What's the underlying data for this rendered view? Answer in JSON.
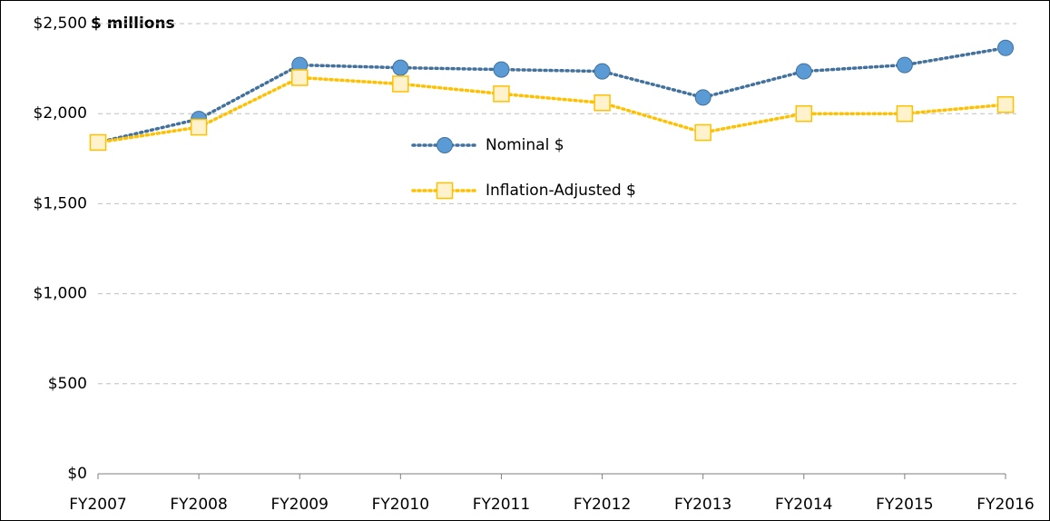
{
  "chart_data": {
    "type": "line",
    "unit_label": "$ millions",
    "categories": [
      "FY2007",
      "FY2008",
      "FY2009",
      "FY2010",
      "FY2011",
      "FY2012",
      "FY2013",
      "FY2014",
      "FY2015",
      "FY2016"
    ],
    "series": [
      {
        "name": "Nominal $",
        "color": "#41719c",
        "marker_color": "#5b9bd5",
        "marker": "circle",
        "values": [
          1840,
          1970,
          2270,
          2255,
          2245,
          2235,
          2090,
          2235,
          2270,
          2365
        ]
      },
      {
        "name": "Inflation-Adjusted $",
        "color": "#ffc000",
        "marker_color": "#fff2cc",
        "marker": "square",
        "values": [
          1840,
          1925,
          2200,
          2165,
          2110,
          2060,
          1895,
          2000,
          2000,
          2050
        ]
      }
    ],
    "ylim": [
      0,
      2500
    ],
    "yticks": [
      {
        "value": 0,
        "label": "$0"
      },
      {
        "value": 500,
        "label": "$500"
      },
      {
        "value": 1000,
        "label": "$1,000"
      },
      {
        "value": 1500,
        "label": "$1,500"
      },
      {
        "value": 2000,
        "label": "$2,000"
      },
      {
        "value": 2500,
        "label": "$2,500"
      }
    ],
    "grid": true,
    "legend": "center"
  }
}
